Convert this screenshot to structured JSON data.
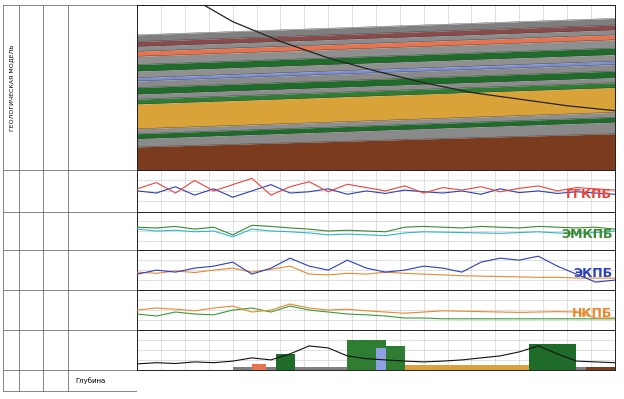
{
  "header": {
    "model_label": "ГЕОЛОГИЧЕСКАЯ МОДЕЛЬ",
    "depth_label": "Глубина"
  },
  "chart_data": [
    {
      "type": "layers",
      "xlim": [
        0,
        100
      ],
      "ylim": [
        0,
        100
      ],
      "xticks": [
        0,
        5,
        10,
        15,
        20,
        25,
        30,
        35,
        40,
        45,
        50,
        55,
        60,
        65,
        70,
        75,
        80,
        85,
        90,
        95,
        100
      ],
      "yticks": [
        0,
        25,
        50,
        75,
        100
      ],
      "grid": true,
      "tick_labels": false,
      "boundaries": [
        [
          18,
          8
        ],
        [
          22,
          12
        ],
        [
          25,
          15
        ],
        [
          28,
          18
        ],
        [
          31,
          21
        ],
        [
          36,
          26
        ],
        [
          40,
          30
        ],
        [
          44,
          34
        ],
        [
          46,
          36
        ],
        [
          50,
          40
        ],
        [
          54,
          44
        ],
        [
          57,
          47
        ],
        [
          60,
          50
        ],
        [
          75,
          65
        ],
        [
          78,
          68
        ],
        [
          81,
          71
        ],
        [
          86,
          78
        ],
        [
          105,
          100
        ]
      ],
      "colors": [
        "#7f7f7f",
        "#8b4a4a",
        "#8c8c8c",
        "#e8734f",
        "#8f8f8f",
        "#1f6b2a",
        "#909090",
        "#7a8fd6",
        "#8a8a8a",
        "#1f6b2a",
        "#8c8c8c",
        "#2e7d32",
        "#d9a33a",
        "#8f8f8f",
        "#1f6b2a",
        "#8a8a8a",
        "#7a3b1f"
      ],
      "trajectory": {
        "color": "#222222",
        "x": [
          14,
          20,
          30,
          40,
          50,
          60,
          70,
          80,
          90,
          100
        ],
        "values": [
          0,
          10,
          22,
          32,
          40,
          47,
          53,
          57,
          61,
          64
        ]
      }
    },
    {
      "type": "line",
      "xlim": [
        0,
        100
      ],
      "ylim": [
        0,
        100
      ],
      "xticks": [
        0,
        5,
        10,
        15,
        20,
        25,
        30,
        35,
        40,
        45,
        50,
        55,
        60,
        65,
        70,
        75,
        80,
        85,
        90,
        95,
        100
      ],
      "yticks": [
        0,
        25,
        50,
        75,
        100
      ],
      "grid": true,
      "tick_labels": false,
      "x": [
        0,
        4,
        8,
        12,
        16,
        20,
        24,
        28,
        32,
        36,
        40,
        44,
        48,
        52,
        56,
        60,
        64,
        68,
        72,
        76,
        80,
        84,
        88,
        92,
        96,
        100
      ],
      "series": [
        {
          "color": "#2b3fb8",
          "values": [
            50,
            45,
            60,
            40,
            55,
            35,
            50,
            65,
            45,
            48,
            55,
            42,
            50,
            44,
            52,
            48,
            45,
            50,
            42,
            55,
            46,
            50,
            44,
            48,
            45,
            42
          ]
        },
        {
          "name": "ГГКПБ",
          "color": "#e8453c",
          "values": [
            55,
            70,
            45,
            75,
            50,
            65,
            80,
            40,
            60,
            72,
            48,
            66,
            58,
            50,
            62,
            45,
            58,
            52,
            60,
            48,
            56,
            62,
            50,
            58,
            55,
            52
          ]
        }
      ]
    },
    {
      "type": "line",
      "xlim": [
        0,
        100
      ],
      "ylim": [
        0,
        100
      ],
      "xticks": [
        0,
        5,
        10,
        15,
        20,
        25,
        30,
        35,
        40,
        45,
        50,
        55,
        60,
        65,
        70,
        75,
        80,
        85,
        90,
        95,
        100
      ],
      "yticks": [
        0,
        25,
        50,
        75,
        100
      ],
      "grid": true,
      "tick_labels": false,
      "x": [
        0,
        4,
        8,
        12,
        16,
        20,
        24,
        28,
        32,
        36,
        40,
        44,
        48,
        52,
        56,
        60,
        64,
        68,
        72,
        76,
        80,
        84,
        88,
        92,
        96,
        100
      ],
      "series": [
        {
          "color": "#2ab7c9",
          "values": [
            55,
            50,
            52,
            48,
            50,
            35,
            55,
            50,
            48,
            45,
            40,
            42,
            40,
            38,
            45,
            48,
            47,
            46,
            45,
            44,
            46,
            48,
            45,
            44,
            46,
            50
          ]
        },
        {
          "name": "ЭМКПБ",
          "color": "#3a8a2e",
          "values": [
            60,
            58,
            62,
            55,
            60,
            40,
            65,
            62,
            58,
            55,
            50,
            52,
            50,
            48,
            60,
            62,
            60,
            58,
            62,
            60,
            58,
            62,
            60,
            58,
            60,
            55
          ]
        }
      ]
    },
    {
      "type": "line",
      "xlim": [
        0,
        100
      ],
      "ylim": [
        0,
        100
      ],
      "xticks": [
        0,
        5,
        10,
        15,
        20,
        25,
        30,
        35,
        40,
        45,
        50,
        55,
        60,
        65,
        70,
        75,
        80,
        85,
        90,
        95,
        100
      ],
      "yticks": [
        0,
        25,
        50,
        75,
        100
      ],
      "grid": true,
      "tick_labels": false,
      "x": [
        0,
        4,
        8,
        12,
        16,
        20,
        24,
        28,
        32,
        36,
        40,
        44,
        48,
        52,
        56,
        60,
        64,
        68,
        72,
        76,
        80,
        84,
        88,
        92,
        96,
        100
      ],
      "series": [
        {
          "color": "#e8892e",
          "values": [
            45,
            42,
            48,
            44,
            50,
            55,
            45,
            52,
            60,
            40,
            38,
            42,
            40,
            45,
            42,
            40,
            38,
            36,
            35,
            34,
            33,
            32,
            32,
            30,
            30,
            30
          ]
        },
        {
          "name": "ЭКПБ",
          "color": "#2b3fb8",
          "values": [
            40,
            50,
            45,
            55,
            60,
            70,
            40,
            55,
            80,
            60,
            50,
            75,
            55,
            45,
            50,
            60,
            55,
            45,
            70,
            80,
            75,
            85,
            60,
            40,
            20,
            25
          ]
        }
      ]
    },
    {
      "type": "line",
      "xlim": [
        0,
        100
      ],
      "ylim": [
        0,
        100
      ],
      "xticks": [
        0,
        5,
        10,
        15,
        20,
        25,
        30,
        35,
        40,
        45,
        50,
        55,
        60,
        65,
        70,
        75,
        80,
        85,
        90,
        95,
        100
      ],
      "yticks": [
        0,
        25,
        50,
        75,
        100
      ],
      "grid": true,
      "tick_labels": false,
      "x": [
        0,
        4,
        8,
        12,
        16,
        20,
        24,
        28,
        32,
        36,
        40,
        44,
        48,
        52,
        56,
        60,
        64,
        68,
        72,
        76,
        80,
        84,
        88,
        92,
        96,
        100
      ],
      "series": [
        {
          "color": "#3a9a3a",
          "values": [
            40,
            35,
            45,
            40,
            38,
            50,
            55,
            45,
            60,
            50,
            45,
            40,
            38,
            35,
            30,
            30,
            28,
            28,
            28,
            28,
            28,
            28,
            28,
            28,
            28,
            28
          ]
        },
        {
          "name": "НКПБ",
          "color": "#e8892e",
          "values": [
            50,
            55,
            52,
            48,
            55,
            60,
            45,
            50,
            65,
            55,
            50,
            52,
            48,
            45,
            42,
            45,
            48,
            47,
            46,
            45,
            44,
            45,
            46,
            45,
            30,
            30
          ]
        }
      ]
    },
    {
      "type": "lithology",
      "xlim": [
        0,
        100
      ],
      "ylim": [
        0,
        100
      ],
      "xticks": [
        0,
        5,
        10,
        15,
        20,
        25,
        30,
        35,
        40,
        45,
        50,
        55,
        60,
        65,
        70,
        75,
        80,
        85,
        90,
        95,
        100
      ],
      "yticks": [
        0,
        25,
        50,
        75,
        100
      ],
      "grid": true,
      "tick_labels": false,
      "intervals": [
        {
          "from": 20,
          "to": 100,
          "height": 8,
          "color": "#808080"
        },
        {
          "from": 24,
          "to": 27,
          "height": 15,
          "color": "#e8734f"
        },
        {
          "from": 29,
          "to": 33,
          "height": 40,
          "color": "#1f6b2a"
        },
        {
          "from": 44,
          "to": 52,
          "height": 75,
          "color": "#2e7d32"
        },
        {
          "from": 50,
          "to": 52,
          "height": 55,
          "color": "#8fa0e0"
        },
        {
          "from": 52,
          "to": 56,
          "height": 60,
          "color": "#2e7d32"
        },
        {
          "from": 56,
          "to": 84,
          "height": 12,
          "color": "#d9a33a"
        },
        {
          "from": 82,
          "to": 92,
          "height": 65,
          "color": "#1f6b2a"
        },
        {
          "from": 94,
          "to": 100,
          "height": 8,
          "color": "#7a3b1f"
        }
      ],
      "series": [
        {
          "color": "#111111",
          "x": [
            0,
            4,
            8,
            12,
            16,
            20,
            24,
            28,
            32,
            36,
            40,
            44,
            48,
            52,
            56,
            60,
            64,
            68,
            72,
            76,
            80,
            84,
            88,
            92,
            96,
            100
          ],
          "values": [
            15,
            18,
            16,
            20,
            18,
            22,
            30,
            25,
            40,
            60,
            55,
            35,
            28,
            25,
            22,
            20,
            22,
            25,
            30,
            35,
            45,
            60,
            40,
            22,
            20,
            18
          ]
        }
      ]
    }
  ]
}
